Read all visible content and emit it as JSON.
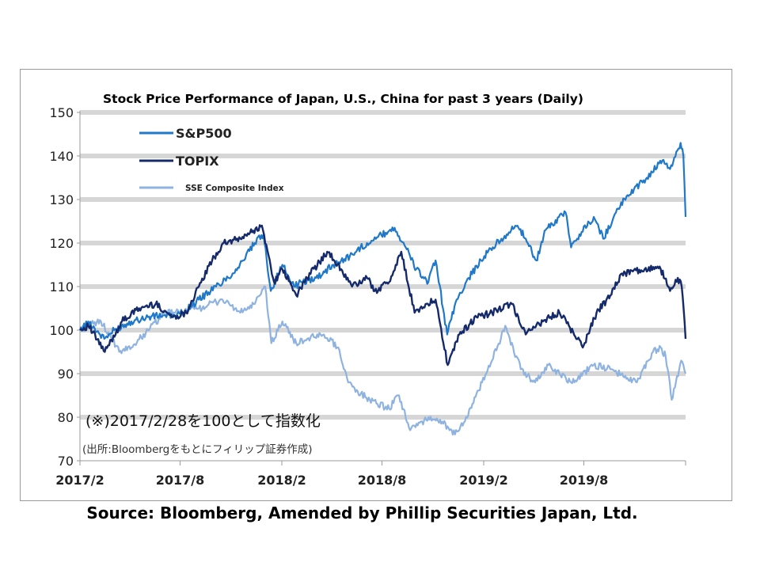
{
  "source_note": "Source: Bloomberg, Amended by Phillip Securities Japan, Ltd.",
  "annotation": {
    "main": "(※)2017/2/28を100として指数化",
    "sub": "(出所:Bloombergをもとにフィリップ証券作成)"
  },
  "chart_data": {
    "type": "line",
    "title": "Stock Price Performance of Japan, U.S., China for past 3 years (Daily)",
    "xlabel": "",
    "ylabel": "",
    "ylim": [
      70,
      150
    ],
    "yticks": [
      70,
      80,
      90,
      100,
      110,
      120,
      130,
      140,
      150
    ],
    "xticks": [
      "2017/2",
      "2017/8",
      "2018/2",
      "2018/8",
      "2019/2",
      "2019/8"
    ],
    "xlim": [
      "2017-02-28",
      "2020-02-28"
    ],
    "grid": true,
    "legend_position": "top-left",
    "series": [
      {
        "name": "S&P500",
        "color": "#1f78c8",
        "points": [
          [
            "2017-02-28",
            100
          ],
          [
            "2017-03-15",
            102
          ],
          [
            "2017-04-13",
            98
          ],
          [
            "2017-05-01",
            100
          ],
          [
            "2017-06-01",
            102
          ],
          [
            "2017-07-01",
            103
          ],
          [
            "2017-08-01",
            103.5
          ],
          [
            "2017-08-15",
            103
          ],
          [
            "2017-09-01",
            104
          ],
          [
            "2017-10-01",
            107
          ],
          [
            "2017-11-01",
            110
          ],
          [
            "2017-12-01",
            113
          ],
          [
            "2017-12-20",
            116
          ],
          [
            "2018-01-10",
            120
          ],
          [
            "2018-01-26",
            122
          ],
          [
            "2018-02-08",
            109
          ],
          [
            "2018-03-01",
            115
          ],
          [
            "2018-03-22",
            110
          ],
          [
            "2018-04-05",
            111
          ],
          [
            "2018-05-01",
            112
          ],
          [
            "2018-06-01",
            115
          ],
          [
            "2018-07-01",
            117
          ],
          [
            "2018-08-01",
            120
          ],
          [
            "2018-09-20",
            123.5
          ],
          [
            "2018-10-10",
            119
          ],
          [
            "2018-10-29",
            114
          ],
          [
            "2018-11-20",
            111
          ],
          [
            "2018-12-03",
            116
          ],
          [
            "2018-12-24",
            99
          ],
          [
            "2019-01-10",
            107
          ],
          [
            "2019-02-01",
            112
          ],
          [
            "2019-03-01",
            117
          ],
          [
            "2019-04-01",
            121
          ],
          [
            "2019-04-30",
            124
          ],
          [
            "2019-05-15",
            121
          ],
          [
            "2019-06-03",
            116
          ],
          [
            "2019-06-20",
            123
          ],
          [
            "2019-07-26",
            127
          ],
          [
            "2019-08-05",
            119
          ],
          [
            "2019-08-20",
            122
          ],
          [
            "2019-09-15",
            126
          ],
          [
            "2019-10-02",
            121
          ],
          [
            "2019-10-25",
            127
          ],
          [
            "2019-11-15",
            131
          ],
          [
            "2019-12-20",
            135
          ],
          [
            "2020-01-17",
            139
          ],
          [
            "2020-01-31",
            137
          ],
          [
            "2020-02-19",
            143
          ],
          [
            "2020-02-24",
            140
          ],
          [
            "2020-02-28",
            126
          ]
        ]
      },
      {
        "name": "TOPIX",
        "color": "#142a6a",
        "points": [
          [
            "2017-02-28",
            100
          ],
          [
            "2017-03-15",
            101
          ],
          [
            "2017-04-14",
            95
          ],
          [
            "2017-05-15",
            102
          ],
          [
            "2017-06-15",
            105
          ],
          [
            "2017-07-15",
            106
          ],
          [
            "2017-08-15",
            103
          ],
          [
            "2017-09-08",
            104
          ],
          [
            "2017-10-01",
            110
          ],
          [
            "2017-10-25",
            116
          ],
          [
            "2017-11-15",
            120
          ],
          [
            "2017-12-15",
            121
          ],
          [
            "2018-01-23",
            124
          ],
          [
            "2018-02-14",
            111
          ],
          [
            "2018-03-01",
            114
          ],
          [
            "2018-03-26",
            108
          ],
          [
            "2018-04-15",
            112
          ],
          [
            "2018-05-21",
            118
          ],
          [
            "2018-06-15",
            114
          ],
          [
            "2018-07-05",
            110
          ],
          [
            "2018-08-01",
            112
          ],
          [
            "2018-08-15",
            109
          ],
          [
            "2018-09-10",
            111
          ],
          [
            "2018-10-02",
            118
          ],
          [
            "2018-10-26",
            104
          ],
          [
            "2018-11-15",
            106
          ],
          [
            "2018-12-03",
            107
          ],
          [
            "2018-12-25",
            92
          ],
          [
            "2019-01-15",
            99
          ],
          [
            "2019-02-15",
            103
          ],
          [
            "2019-03-15",
            104
          ],
          [
            "2019-04-20",
            106
          ],
          [
            "2019-05-15",
            99
          ],
          [
            "2019-06-15",
            102
          ],
          [
            "2019-07-15",
            104
          ],
          [
            "2019-08-01",
            101
          ],
          [
            "2019-08-26",
            96
          ],
          [
            "2019-09-20",
            104
          ],
          [
            "2019-10-15",
            108
          ],
          [
            "2019-11-05",
            113
          ],
          [
            "2019-12-16",
            114
          ],
          [
            "2020-01-14",
            114
          ],
          [
            "2020-01-31",
            109
          ],
          [
            "2020-02-14",
            112
          ],
          [
            "2020-02-21",
            110
          ],
          [
            "2020-02-28",
            98
          ]
        ]
      },
      {
        "name": "SSE Composite Index",
        "color": "#8fb3e0",
        "points": [
          [
            "2017-02-28",
            100
          ],
          [
            "2017-03-15",
            101
          ],
          [
            "2017-04-07",
            102
          ],
          [
            "2017-05-10",
            95
          ],
          [
            "2017-06-01",
            96
          ],
          [
            "2017-07-01",
            100
          ],
          [
            "2017-08-01",
            104
          ],
          [
            "2017-09-01",
            104
          ],
          [
            "2017-10-01",
            105
          ],
          [
            "2017-11-13",
            107
          ],
          [
            "2017-12-15",
            104
          ],
          [
            "2018-01-10",
            106
          ],
          [
            "2018-01-29",
            110
          ],
          [
            "2018-02-09",
            97
          ],
          [
            "2018-03-01",
            102
          ],
          [
            "2018-03-26",
            97
          ],
          [
            "2018-04-15",
            98
          ],
          [
            "2018-05-15",
            99
          ],
          [
            "2018-06-10",
            96
          ],
          [
            "2018-06-28",
            88
          ],
          [
            "2018-07-15",
            86
          ],
          [
            "2018-08-06",
            84
          ],
          [
            "2018-08-20",
            83
          ],
          [
            "2018-09-10",
            82
          ],
          [
            "2018-09-28",
            85
          ],
          [
            "2018-10-18",
            77
          ],
          [
            "2018-11-20",
            80
          ],
          [
            "2018-12-15",
            79
          ],
          [
            "2019-01-03",
            76
          ],
          [
            "2019-01-25",
            79
          ],
          [
            "2019-02-25",
            88
          ],
          [
            "2019-03-15",
            93
          ],
          [
            "2019-04-08",
            101
          ],
          [
            "2019-05-06",
            91
          ],
          [
            "2019-06-01",
            88
          ],
          [
            "2019-06-25",
            92
          ],
          [
            "2019-07-15",
            90
          ],
          [
            "2019-08-05",
            88
          ],
          [
            "2019-09-15",
            92
          ],
          [
            "2019-10-15",
            91
          ],
          [
            "2019-11-15",
            89
          ],
          [
            "2019-12-02",
            88
          ],
          [
            "2019-12-31",
            95
          ],
          [
            "2020-01-14",
            96
          ],
          [
            "2020-01-23",
            94
          ],
          [
            "2020-02-03",
            84
          ],
          [
            "2020-02-20",
            93
          ],
          [
            "2020-02-28",
            90
          ]
        ]
      }
    ]
  }
}
